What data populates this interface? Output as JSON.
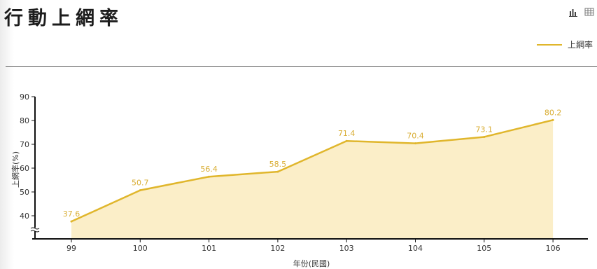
{
  "header": {
    "title": "行動上網率",
    "icons": [
      "bar-chart-icon",
      "table-icon"
    ]
  },
  "colors": {
    "line": "#e0b62c",
    "area": "#fbeec8",
    "axis": "#111111",
    "label": "#d9ae35"
  },
  "chart_data": {
    "type": "area",
    "x": [
      "99",
      "100",
      "101",
      "102",
      "103",
      "104",
      "105",
      "106"
    ],
    "series": [
      {
        "name": "上網率",
        "values": [
          37.6,
          50.7,
          56.4,
          58.5,
          71.4,
          70.4,
          73.1,
          80.2
        ]
      }
    ],
    "xlabel": "年份(民國)",
    "ylabel": "上網率(%)",
    "yticks": [
      40,
      50,
      60,
      70,
      80,
      90
    ],
    "ylim": [
      34,
      90
    ],
    "axis_break": true,
    "legend_position": "top-right",
    "grid": false
  }
}
